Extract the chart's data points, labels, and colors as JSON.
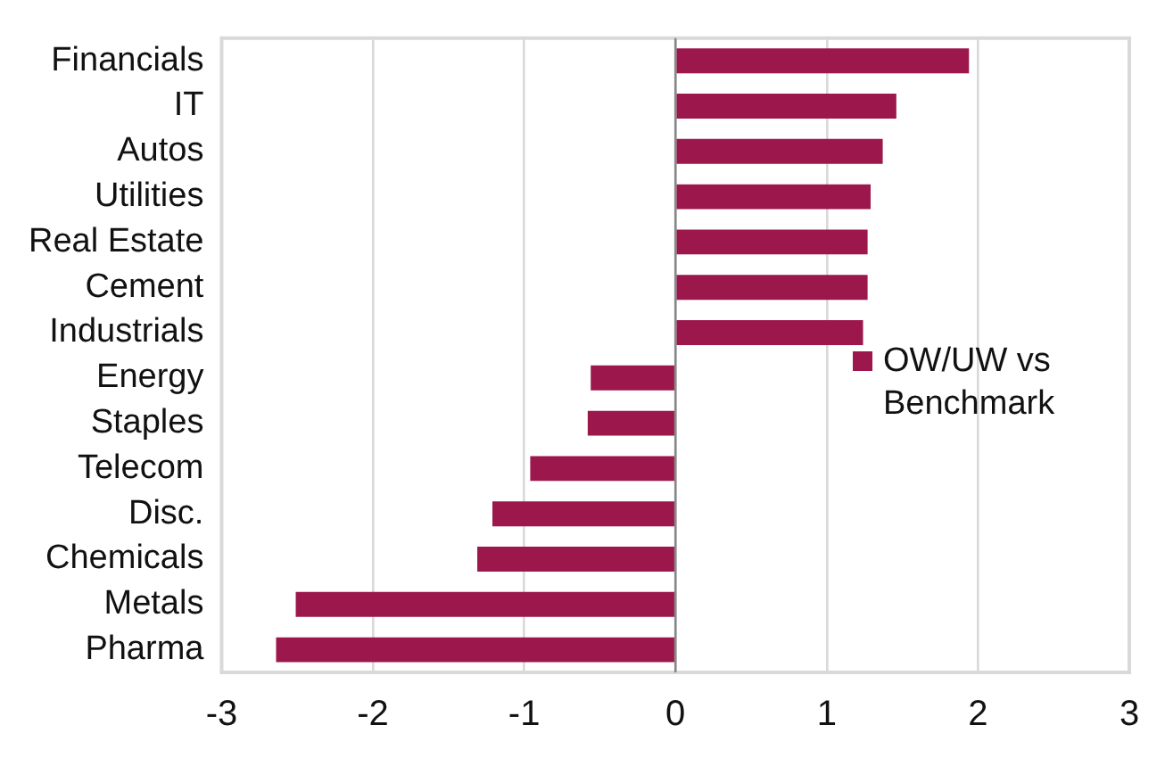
{
  "chart_data": {
    "type": "bar",
    "orientation": "horizontal",
    "categories": [
      "Financials",
      "IT",
      "Autos",
      "Utilities",
      "Real Estate",
      "Cement",
      "Industrials",
      "Energy",
      "Staples",
      "Telecom",
      "Disc.",
      "Chemicals",
      "Metals",
      "Pharma"
    ],
    "series": [
      {
        "name": "OW/UW vs Benchmark",
        "color": "#9b174c",
        "values": [
          1.94,
          1.46,
          1.37,
          1.29,
          1.27,
          1.27,
          1.24,
          -0.56,
          -0.58,
          -0.96,
          -1.21,
          -1.31,
          -2.51,
          -2.64
        ]
      }
    ],
    "xlim": [
      -3,
      3
    ],
    "xticks": [
      -3,
      -2,
      -1,
      0,
      1,
      2,
      3
    ],
    "grid": "x",
    "legend": "right"
  }
}
